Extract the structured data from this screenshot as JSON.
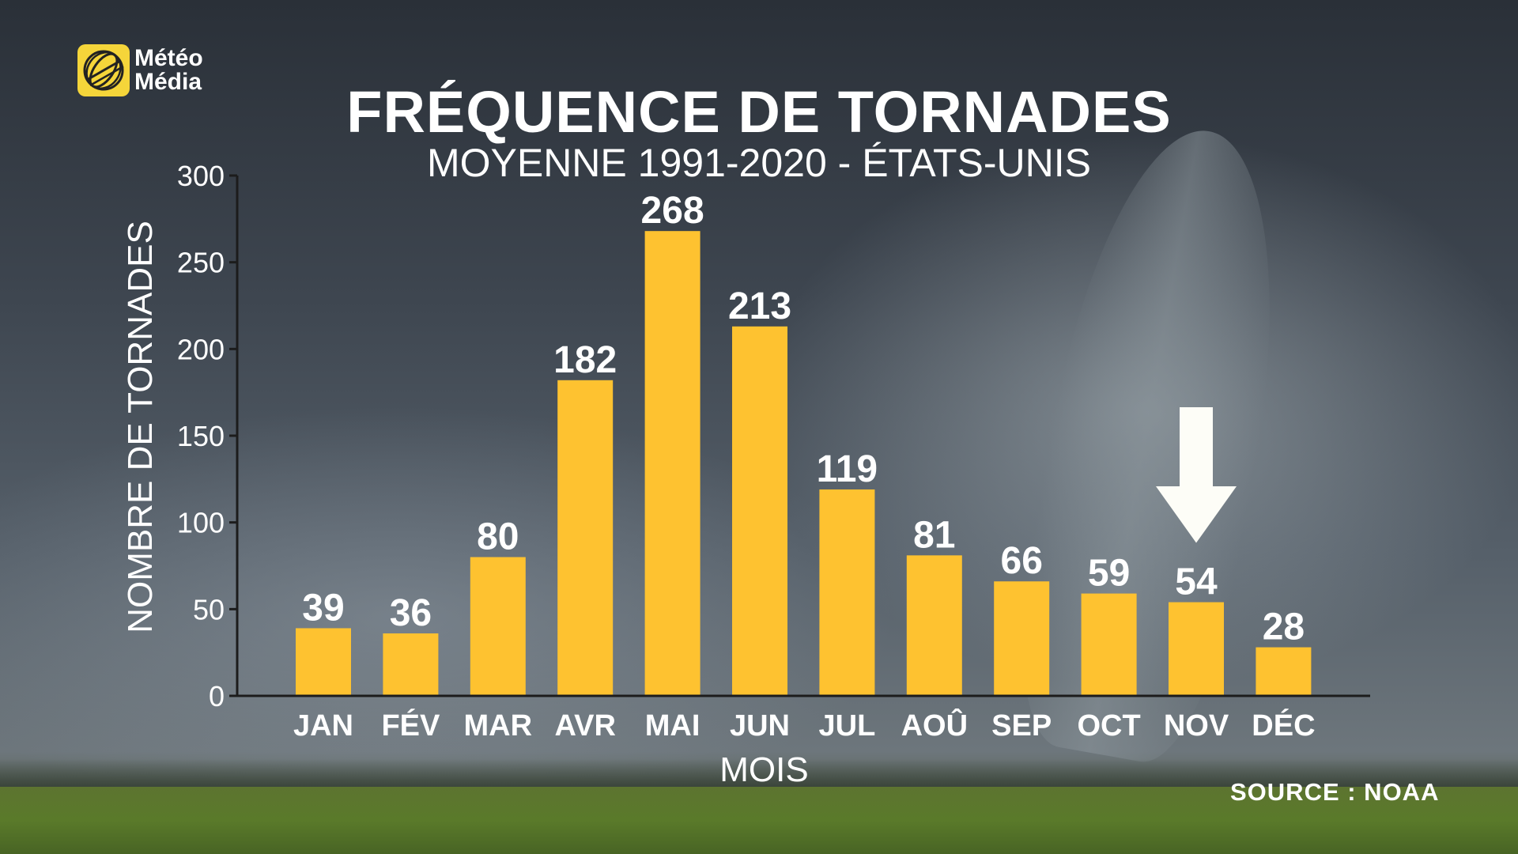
{
  "brand": {
    "line1": "Météo",
    "line2": "Média",
    "color": "#f5d53a"
  },
  "title": "FRÉQUENCE DE TORNADES",
  "subtitle": "MOYENNE 1991-2020 - ÉTATS-UNIS",
  "source": "SOURCE : NOAA",
  "chart_data": {
    "type": "bar",
    "title": "FRÉQUENCE DE TORNADES",
    "subtitle": "MOYENNE 1991-2020 - ÉTATS-UNIS",
    "xlabel": "MOIS",
    "ylabel": "NOMBRE DE TORNADES",
    "categories": [
      "JAN",
      "FÉV",
      "MAR",
      "AVR",
      "MAI",
      "JUN",
      "JUL",
      "AOÛ",
      "SEP",
      "OCT",
      "NOV",
      "DÉC"
    ],
    "values": [
      39,
      36,
      80,
      182,
      268,
      213,
      119,
      81,
      66,
      59,
      54,
      28
    ],
    "ylim": [
      0,
      300
    ],
    "yticks": [
      0,
      50,
      100,
      150,
      200,
      250,
      300
    ],
    "bar_color": "#fec230",
    "grid": false,
    "data_labels": true,
    "highlight": {
      "category": "NOV",
      "marker": "down-arrow"
    }
  }
}
